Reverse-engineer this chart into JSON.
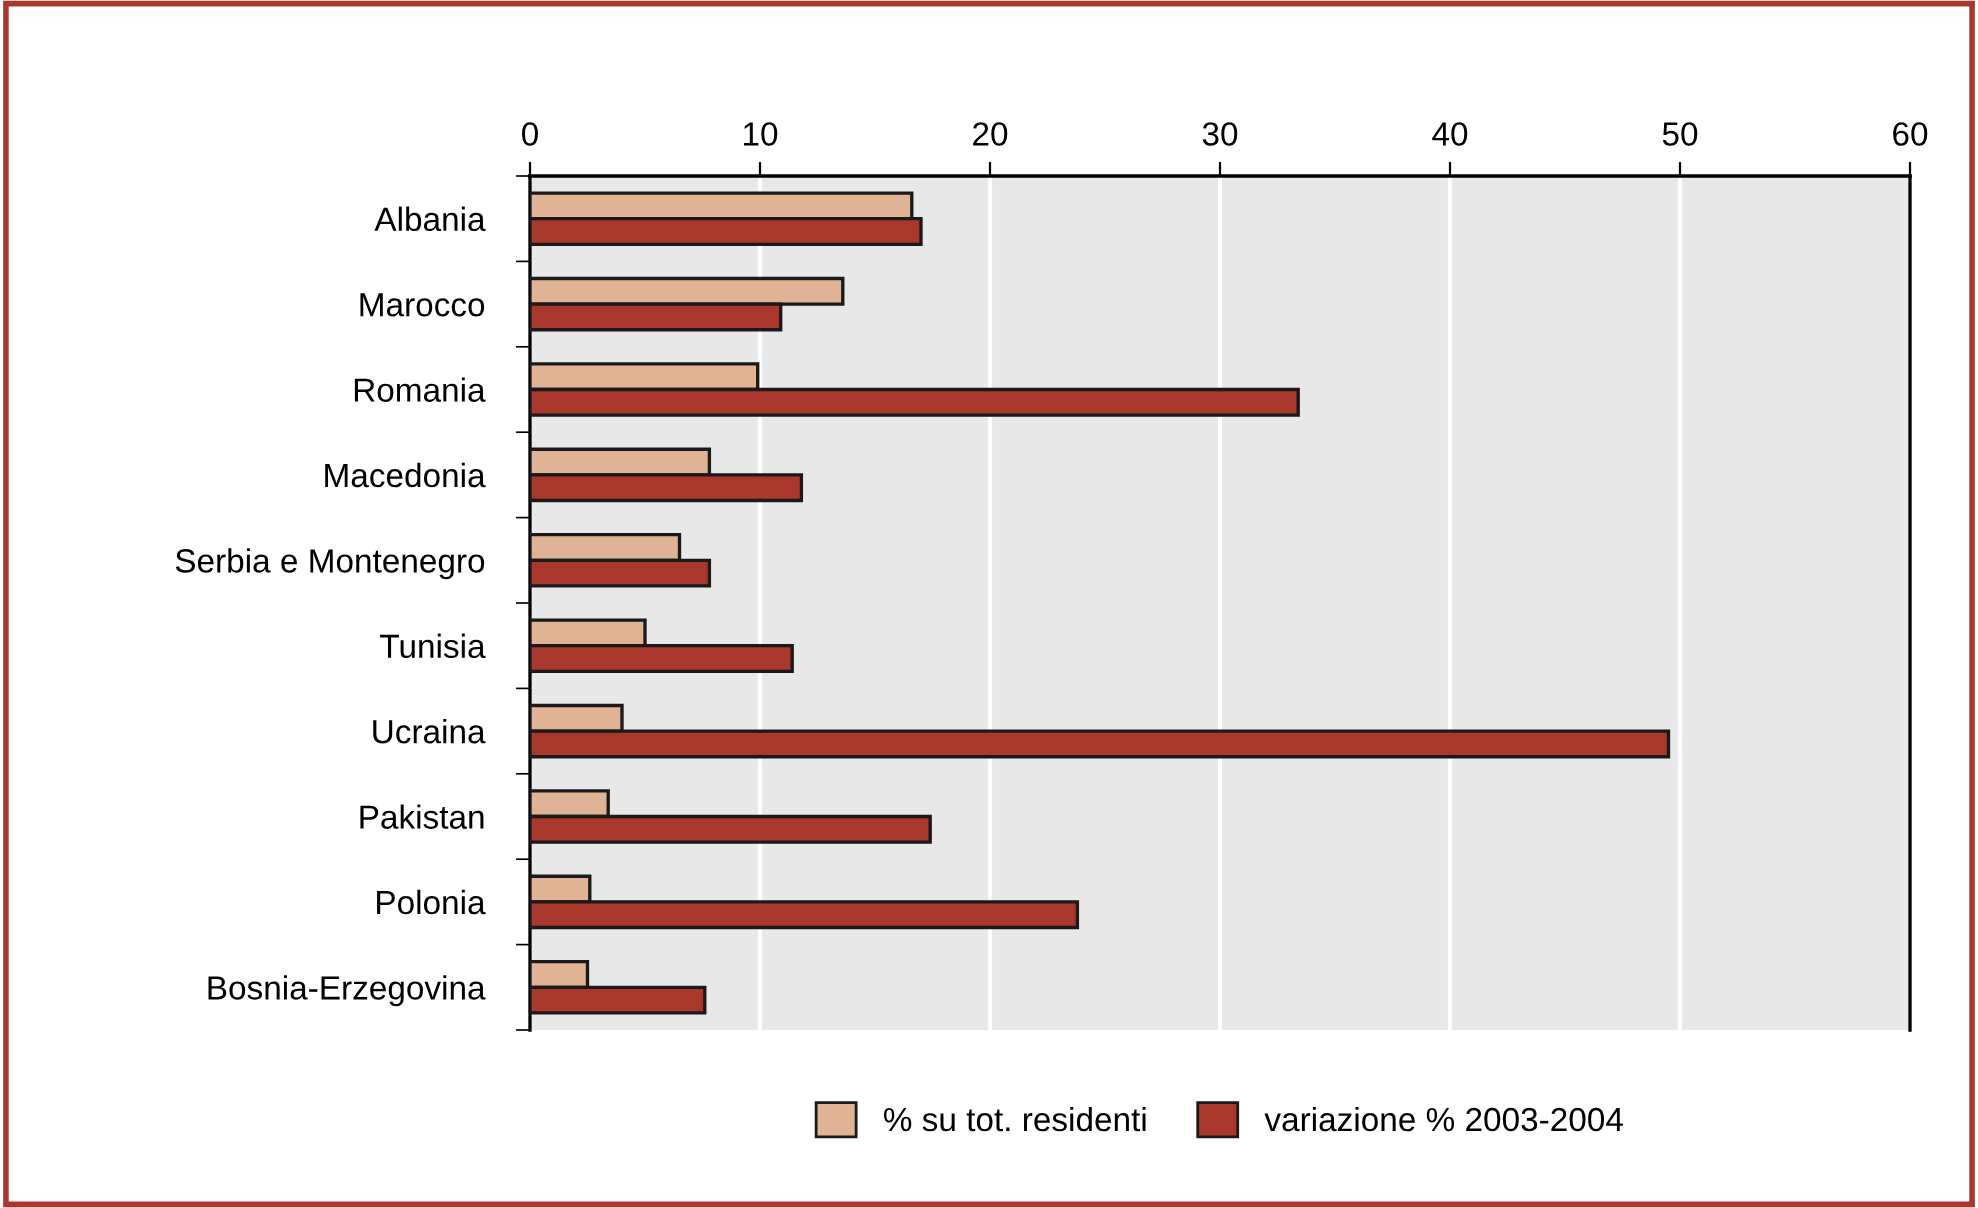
{
  "chart_data": {
    "type": "bar",
    "orientation": "horizontal",
    "categories": [
      "Albania",
      "Marocco",
      "Romania",
      "Macedonia",
      "Serbia e Montenegro",
      "Tunisia",
      "Ucraina",
      "Pakistan",
      "Polonia",
      "Bosnia-Erzegovina"
    ],
    "series": [
      {
        "name": "% su tot. residenti",
        "color": "#dfb393",
        "values": [
          16.6,
          13.6,
          9.9,
          7.8,
          6.5,
          5.0,
          4.0,
          3.4,
          2.6,
          2.5
        ]
      },
      {
        "name": "variazione % 2003-2004",
        "color": "#a9372b",
        "values": [
          17.0,
          10.9,
          33.4,
          11.8,
          7.8,
          11.4,
          49.5,
          17.4,
          23.8,
          7.6
        ]
      }
    ],
    "xlim": [
      0,
      60
    ],
    "xticks": [
      0,
      10,
      20,
      30,
      40,
      50,
      60
    ],
    "grid": "x",
    "legend": "bottom"
  }
}
